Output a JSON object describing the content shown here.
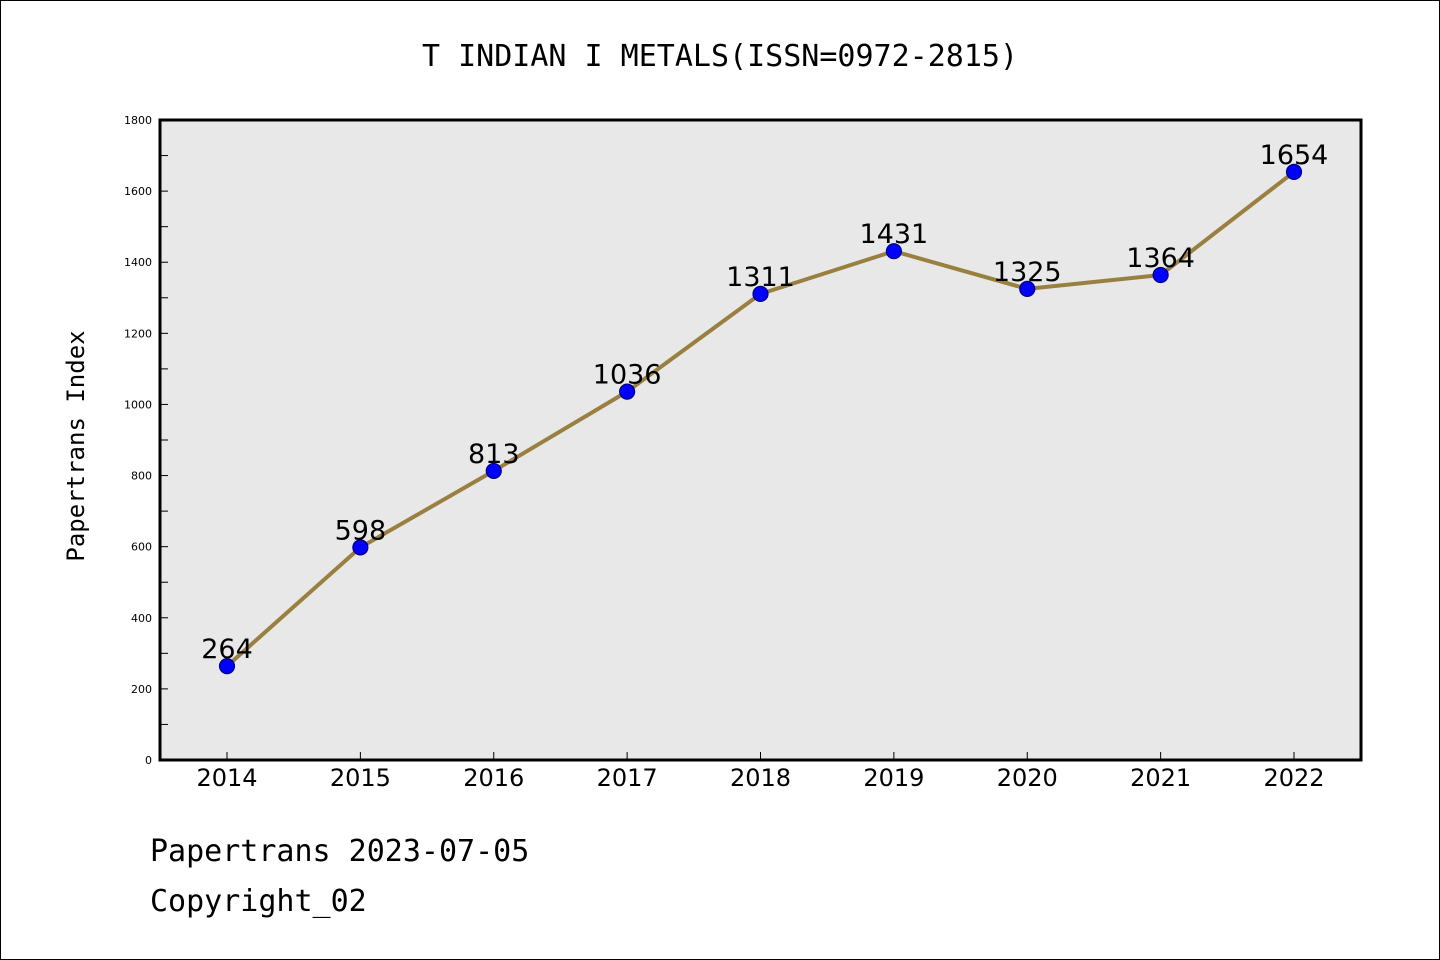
{
  "chart_data": {
    "type": "line",
    "title": "T INDIAN I METALS(ISSN=0972-2815)",
    "xlabel": "",
    "ylabel": "Papertrans Index",
    "categories": [
      "2014",
      "2015",
      "2016",
      "2017",
      "2018",
      "2019",
      "2020",
      "2021",
      "2022"
    ],
    "series": [
      {
        "values": [
          264,
          598,
          813,
          1036,
          1311,
          1431,
          1325,
          1364,
          1654
        ]
      }
    ],
    "ylim": [
      0,
      1800
    ],
    "yticks": [
      0,
      200,
      400,
      600,
      800,
      1000,
      1200,
      1400,
      1600,
      1800
    ],
    "grid": false,
    "legend": "none",
    "data_labels": true,
    "colors": {
      "line": "#9a8040",
      "marker": "#0000ff",
      "marker_edge": "#000080",
      "plot_background": "#e8e8e8",
      "text": "#000000"
    }
  },
  "footer": {
    "date_text": "Papertrans 2023-07-05",
    "copyright_text": "Copyright_02"
  }
}
